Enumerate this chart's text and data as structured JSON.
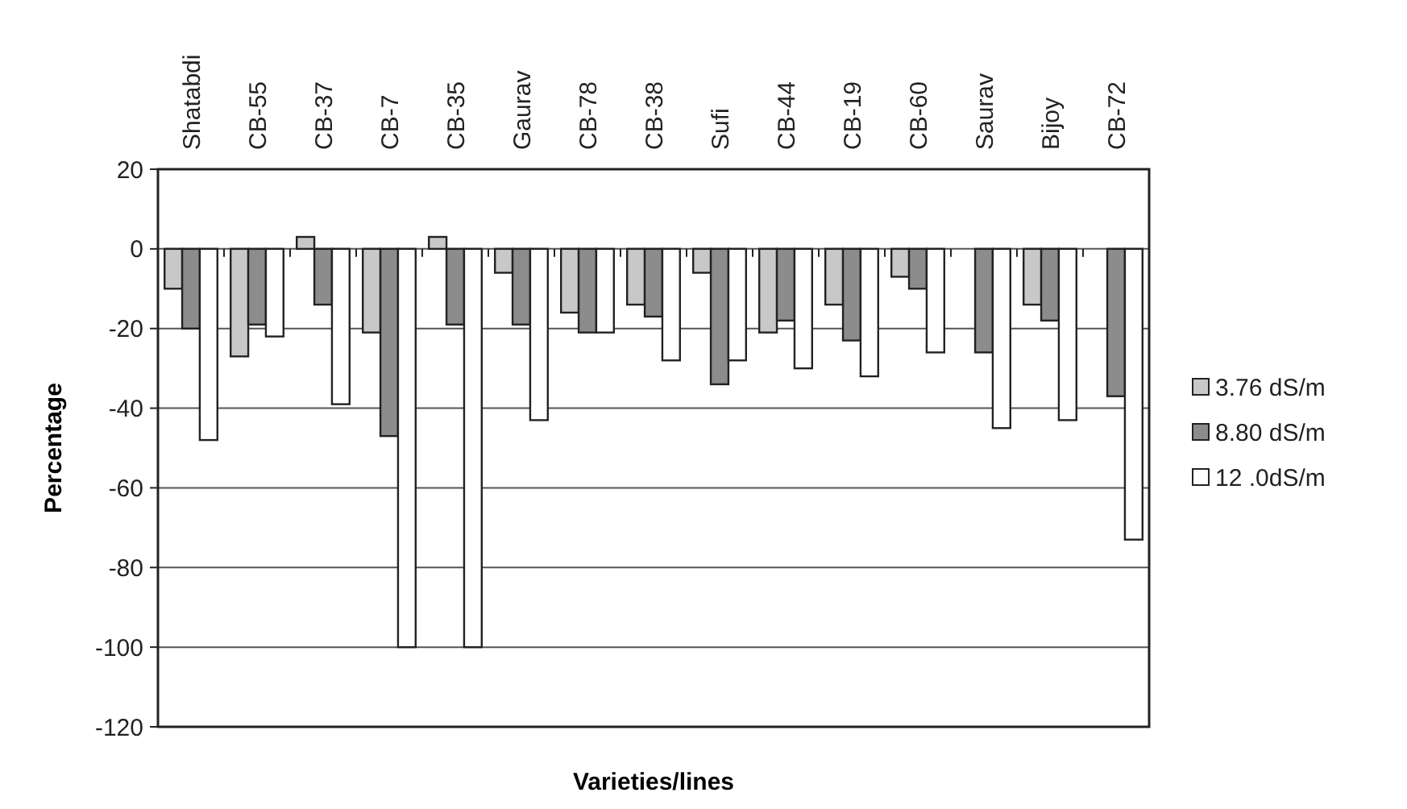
{
  "chart_data": {
    "type": "bar",
    "xlabel": "Varieties/lines",
    "ylabel": "Percentage",
    "categories": [
      "Shatabdi",
      "CB-55",
      "CB-37",
      "CB-7",
      "CB-35",
      "Gaurav",
      "CB-78",
      "CB-38",
      "Sufi",
      "CB-44",
      "CB-19",
      "CB-60",
      "Saurav",
      "Bijoy",
      "CB-72"
    ],
    "series": [
      {
        "name": "3.76 dS/m",
        "color": "#c8c8c8",
        "values": [
          -10,
          -27,
          3,
          -21,
          3,
          -6,
          -16,
          -14,
          -6,
          -21,
          -14,
          -7,
          0,
          -14,
          0
        ]
      },
      {
        "name": "8.80 dS/m",
        "color": "#8c8c8c",
        "values": [
          -20,
          -19,
          -14,
          -47,
          -19,
          -19,
          -21,
          -17,
          -34,
          -18,
          -23,
          -10,
          -26,
          -18,
          -37
        ]
      },
      {
        "name": "12 .0dS/m",
        "color": "#ffffff",
        "values": [
          -48,
          -22,
          -39,
          -100,
          -100,
          -43,
          -21,
          -28,
          -28,
          -30,
          -32,
          -26,
          -45,
          -43,
          -73
        ]
      }
    ],
    "ylim": [
      -120,
      20
    ],
    "yticks": [
      -120,
      -100,
      -80,
      -60,
      -40,
      -20,
      0,
      20
    ],
    "grid": "y",
    "legend": "right"
  }
}
